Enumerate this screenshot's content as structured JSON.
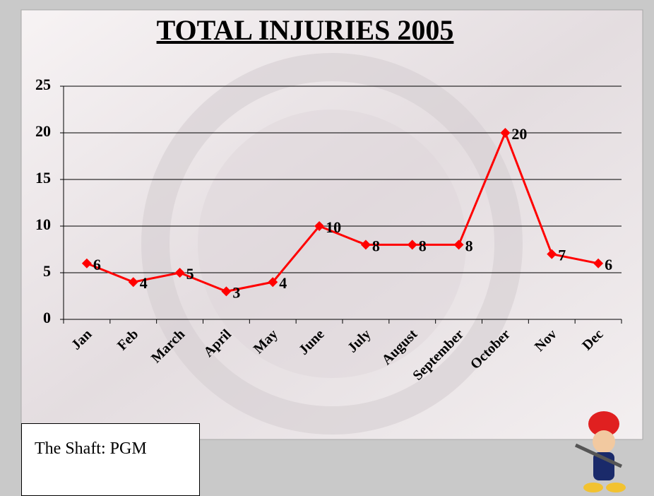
{
  "chart_data": {
    "type": "line",
    "title": "TOTAL INJURIES 2005",
    "categories": [
      "Jan",
      "Feb",
      "March",
      "April",
      "May",
      "June",
      "July",
      "August",
      "September",
      "October",
      "Nov",
      "Dec"
    ],
    "values": [
      6,
      4,
      5,
      3,
      4,
      10,
      8,
      8,
      8,
      20,
      7,
      6
    ],
    "color": "#ff0000",
    "ylim": [
      0,
      25
    ],
    "yticks": [
      0,
      5,
      10,
      15,
      20,
      25
    ],
    "grid": true
  },
  "footer": {
    "text": "The Shaft: PGM"
  }
}
